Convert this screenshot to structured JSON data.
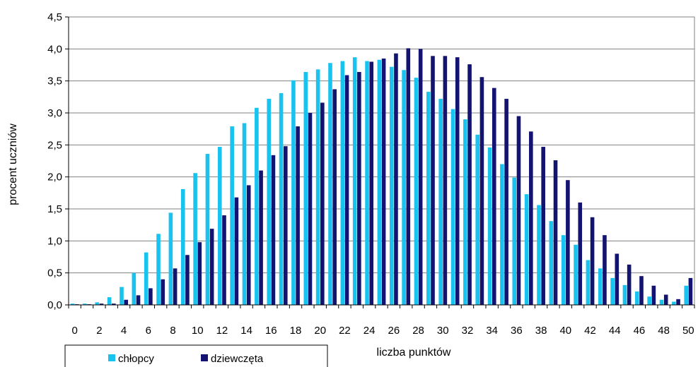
{
  "chart_data": {
    "type": "bar",
    "title": "",
    "xlabel": "liczba punktów",
    "ylabel": "procent uczniów",
    "ylim": [
      0,
      4.5
    ],
    "y_ticks": [
      "0,0",
      "0,5",
      "1,0",
      "1,5",
      "2,0",
      "2,5",
      "3,0",
      "3,5",
      "4,0",
      "4,5"
    ],
    "x_tick_labels": [
      "0",
      "2",
      "4",
      "6",
      "8",
      "10",
      "12",
      "14",
      "16",
      "18",
      "20",
      "22",
      "24",
      "26",
      "28",
      "30",
      "32",
      "34",
      "36",
      "38",
      "40",
      "42",
      "44",
      "46",
      "48",
      "50"
    ],
    "grid": true,
    "legend_position": "bottom-left",
    "categories": [
      0,
      1,
      2,
      3,
      4,
      5,
      6,
      7,
      8,
      9,
      10,
      11,
      12,
      13,
      14,
      15,
      16,
      17,
      18,
      19,
      20,
      21,
      22,
      23,
      24,
      25,
      26,
      27,
      28,
      29,
      30,
      31,
      32,
      33,
      34,
      35,
      36,
      37,
      38,
      39,
      40,
      41,
      42,
      43,
      44,
      45,
      46,
      47,
      48,
      49,
      50
    ],
    "series": [
      {
        "name": "chłopcy",
        "color": "#19c3f0",
        "values": [
          0.02,
          0.02,
          0.04,
          0.12,
          0.28,
          0.5,
          0.82,
          1.11,
          1.44,
          1.81,
          2.06,
          2.36,
          2.47,
          2.79,
          2.84,
          3.08,
          3.22,
          3.31,
          3.51,
          3.64,
          3.68,
          3.78,
          3.81,
          3.87,
          3.81,
          3.83,
          3.72,
          3.67,
          3.55,
          3.33,
          3.22,
          3.06,
          2.9,
          2.66,
          2.46,
          2.2,
          1.99,
          1.73,
          1.56,
          1.31,
          1.09,
          0.94,
          0.7,
          0.57,
          0.42,
          0.31,
          0.21,
          0.13,
          0.08,
          0.05,
          0.3
        ]
      },
      {
        "name": "dziewczęta",
        "color": "#131372",
        "values": [
          0.01,
          0.01,
          0.02,
          0.02,
          0.08,
          0.15,
          0.26,
          0.4,
          0.57,
          0.78,
          0.98,
          1.19,
          1.4,
          1.68,
          1.87,
          2.1,
          2.34,
          2.48,
          2.79,
          3.0,
          3.16,
          3.37,
          3.59,
          3.64,
          3.8,
          3.85,
          3.93,
          4.01,
          4.0,
          3.89,
          3.89,
          3.87,
          3.76,
          3.56,
          3.39,
          3.22,
          2.95,
          2.71,
          2.47,
          2.26,
          1.95,
          1.6,
          1.37,
          1.09,
          0.8,
          0.63,
          0.45,
          0.3,
          0.16,
          0.09,
          0.42
        ]
      }
    ]
  }
}
